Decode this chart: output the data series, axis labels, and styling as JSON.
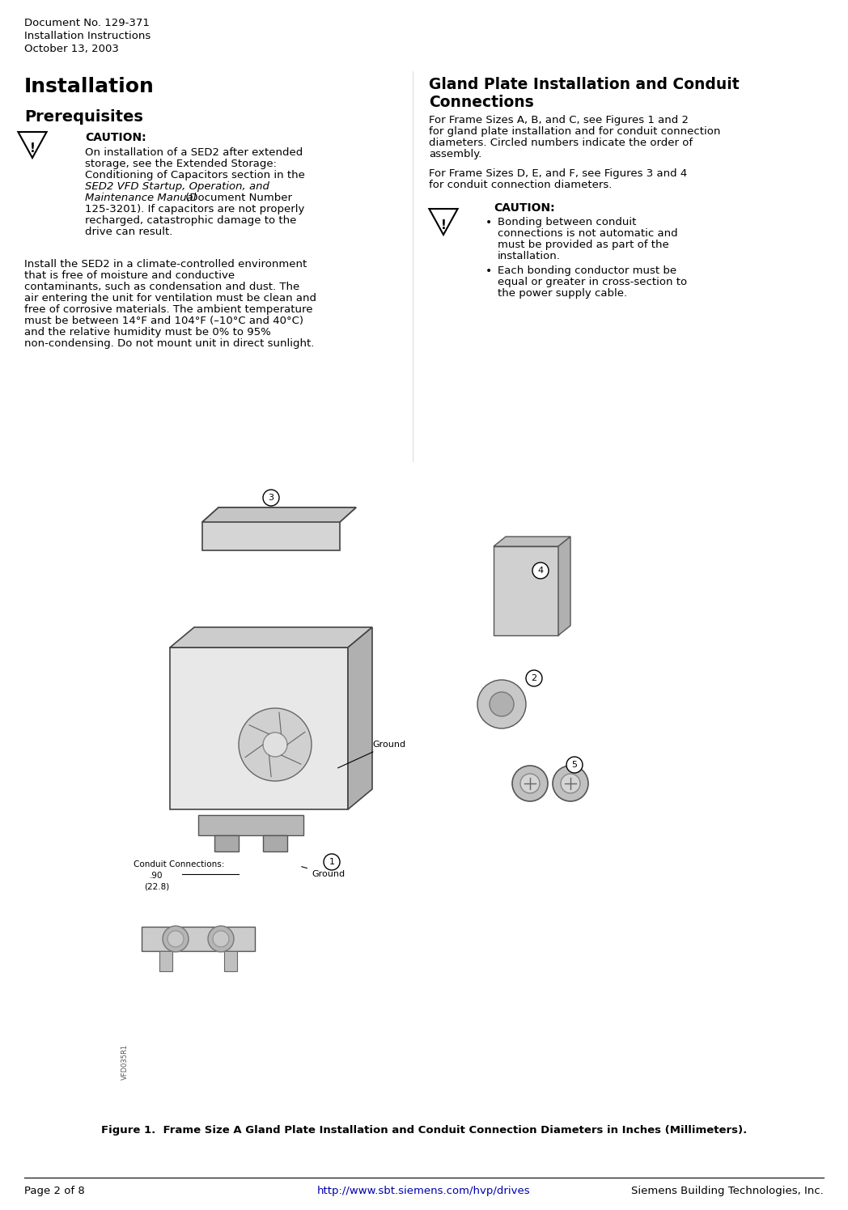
{
  "bg_color": "#ffffff",
  "header_line1": "Document No. 129-371",
  "header_line2": "Installation Instructions",
  "header_line3": "October 13, 2003",
  "section1_title": "Installation",
  "section1_sub": "Prerequisites",
  "caution1_title": "CAUTION:",
  "caution1_text": "On installation of a SED2 after extended\nstorage, see the Extended Storage:\nConditioning of Capacitors section in the\nSED2 VFD Startup, Operation, and\nMaintenance Manual (Document Number\n125-3201). If capacitors are not properly\nrecharged, catastrophic damage to the\ndrive can result.",
  "body1_text": "Install the SED2 in a climate-controlled environment\nthat is free of moisture and conductive\ncontaminants, such as condensation and dust. The\nair entering the unit for ventilation must be clean and\nfree of corrosive materials. The ambient temperature\nmust be between 14°F and 104°F (–10°C and 40°C)\nand the relative humidity must be 0% to 95%\nnon-condensing. Do not mount unit in direct sunlight.",
  "section2_title": "Gland Plate Installation and Conduit\nConnections",
  "section2_body1": "For Frame Sizes A, B, and C, see Figures 1 and 2\nfor gland plate installation and for conduit connection\ndiameters. Circled numbers indicate the order of\nassembly.",
  "section2_body2": "For Frame Sizes D, E, and F, see Figures 3 and 4\nfor conduit connection diameters.",
  "caution2_title": "CAUTION:",
  "caution2_bullet1": "Bonding between conduit\nconnections is not automatic and\nmust be provided as part of the\ninstallation.",
  "caution2_bullet2": "Each bonding conductor must be\nequal or greater in cross-section to\nthe power supply cable.",
  "figure_caption": "Figure 1.  Frame Size A Gland Plate Installation and Conduit Connection Diameters in Inches (Millimeters).",
  "footer_left": "Page 2 of 8",
  "footer_center": "http://www.sbt.siemens.com/hvp/drives",
  "footer_right": "Siemens Building Technologies, Inc.",
  "conduit_label": "Conduit Connections:\n.90\n(22.8)",
  "ground_label1": "Ground",
  "ground_label2": "Ground"
}
